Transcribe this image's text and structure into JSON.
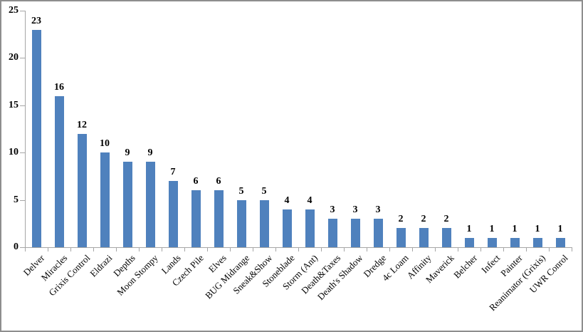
{
  "chart": {
    "bar_color": "#4f81bd",
    "axis_color": "#a6a6a6",
    "text_color": "#000000",
    "frame_color": "#8e8e8e",
    "background": "#ffffff"
  },
  "chart_data": {
    "type": "bar",
    "title": "",
    "xlabel": "",
    "ylabel": "",
    "categories": [
      "Delver",
      "Miracles",
      "Grixis Control",
      "Eldrazi",
      "Depths",
      "Moon Stompy",
      "Lands",
      "Czech Pile",
      "Elves",
      "BUG Midrange",
      "Sneak&Show",
      "Stoneblade",
      "Storm (Ant)",
      "Death&Taxes",
      "Death's Shadow",
      "Dredge",
      "4c Loam",
      "Affinity",
      "Maverick",
      "Belcher",
      "Infect",
      "Painter",
      "Reanimator (Grixis)",
      "UWR Conrol"
    ],
    "values": [
      23,
      16,
      12,
      10,
      9,
      9,
      7,
      6,
      6,
      5,
      5,
      4,
      4,
      3,
      3,
      3,
      2,
      2,
      2,
      1,
      1,
      1,
      1,
      1
    ],
    "ylim": [
      0,
      25
    ],
    "yticks": [
      0,
      5,
      10,
      15,
      20,
      25
    ],
    "grid": false,
    "legend": "none",
    "data_labels": true,
    "category_label_rotation_deg": 45
  }
}
